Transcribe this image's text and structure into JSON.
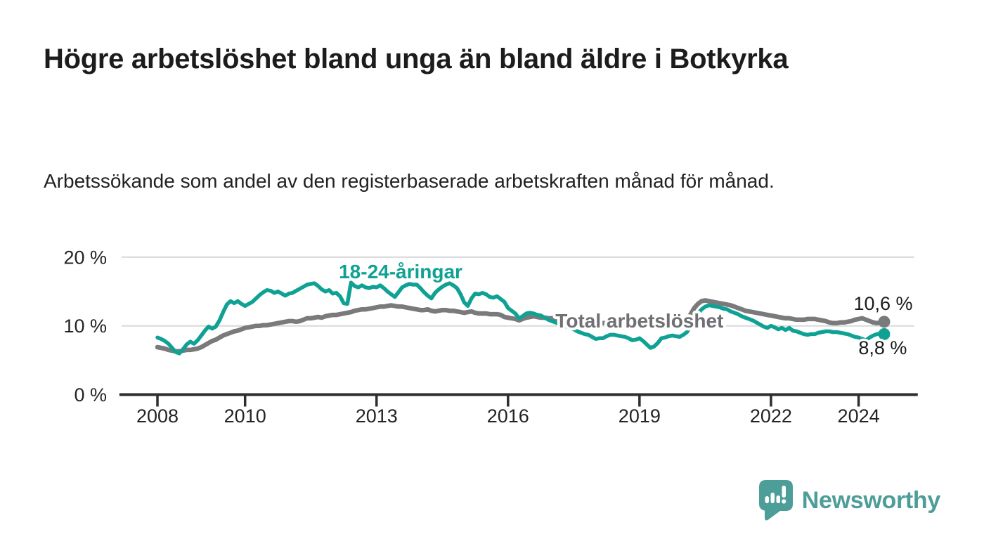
{
  "header": {
    "title": "Högre arbetslöshet bland unga än bland äldre i Botkyrka",
    "subtitle": "Arbetssökande som andel av den registerbaserade arbetskraften månad för månad."
  },
  "footer": {
    "brand": "Newsworthy"
  },
  "colors": {
    "youth_line": "#0fa294",
    "total_line": "#7a7a7c",
    "total_label_text": "#6f6f74",
    "value_label_text": "#1a1a1a",
    "axis": "#2e2e2e",
    "tick_text": "#232323",
    "grid": "#d9d9d9",
    "halo": "#ffffff",
    "logo": "#4d9d99"
  },
  "chart_data": {
    "type": "line",
    "title": "",
    "xlabel": "",
    "ylabel": "",
    "x_unit": "year (monthly data)",
    "y_unit": "%",
    "x_start_year": 2008,
    "points_per_year": 12,
    "xlim": [
      2007.1,
      2025.35
    ],
    "ylim": [
      0,
      21
    ],
    "grid": "horizontal",
    "legend_position": "inline-labels",
    "x_ticks": [
      "2008",
      "2010",
      "2013",
      "2016",
      "2019",
      "2022",
      "2024"
    ],
    "x_tick_years": [
      2008,
      2010,
      2013,
      2016,
      2019,
      2022,
      2024
    ],
    "y_ticks": [
      {
        "value": 0,
        "label": "0 %"
      },
      {
        "value": 10,
        "label": "10 %"
      },
      {
        "value": 20,
        "label": "20 %"
      }
    ],
    "series": [
      {
        "name": "Total arbetslöshet",
        "color_key": "total_line",
        "end_label": "10,6 %",
        "end_value": 10.6,
        "values": [
          6.9,
          6.8,
          6.7,
          6.5,
          6.4,
          6.3,
          6.3,
          6.4,
          6.5,
          6.5,
          6.6,
          6.7,
          6.9,
          7.2,
          7.5,
          7.8,
          8.0,
          8.3,
          8.6,
          8.8,
          9.0,
          9.2,
          9.3,
          9.5,
          9.7,
          9.8,
          9.9,
          10.0,
          10.0,
          10.1,
          10.1,
          10.2,
          10.3,
          10.4,
          10.5,
          10.6,
          10.7,
          10.7,
          10.6,
          10.7,
          10.9,
          11.1,
          11.1,
          11.2,
          11.3,
          11.2,
          11.4,
          11.5,
          11.6,
          11.6,
          11.7,
          11.8,
          11.9,
          12.0,
          12.2,
          12.3,
          12.4,
          12.4,
          12.5,
          12.6,
          12.7,
          12.8,
          12.8,
          12.9,
          13.0,
          12.9,
          12.8,
          12.8,
          12.7,
          12.6,
          12.5,
          12.4,
          12.3,
          12.3,
          12.4,
          12.2,
          12.1,
          12.2,
          12.3,
          12.3,
          12.2,
          12.2,
          12.1,
          12.0,
          11.9,
          12.0,
          12.1,
          11.9,
          11.8,
          11.8,
          11.8,
          11.7,
          11.7,
          11.7,
          11.6,
          11.3,
          11.2,
          11.1,
          11.0,
          10.8,
          11.0,
          11.2,
          11.3,
          11.4,
          11.3,
          11.2,
          11.2,
          11.1,
          11.1,
          11.1,
          11.0,
          11.0,
          10.9,
          10.9,
          10.8,
          10.8,
          10.7,
          10.7,
          10.6,
          10.6,
          10.5,
          10.5,
          10.4,
          10.4,
          10.4,
          10.3,
          10.3,
          10.2,
          10.2,
          10.1,
          10.1,
          10.0,
          10.0,
          9.9,
          9.9,
          9.9,
          9.9,
          10.0,
          10.0,
          10.1,
          10.1,
          10.2,
          10.2,
          10.3,
          10.5,
          10.9,
          11.7,
          12.6,
          13.2,
          13.6,
          13.7,
          13.6,
          13.5,
          13.4,
          13.3,
          13.2,
          13.1,
          13.0,
          12.8,
          12.6,
          12.4,
          12.2,
          12.1,
          12.0,
          11.9,
          11.8,
          11.7,
          11.6,
          11.5,
          11.4,
          11.3,
          11.2,
          11.1,
          11.1,
          11.0,
          10.9,
          10.9,
          10.9,
          11.0,
          11.0,
          11.0,
          10.9,
          10.8,
          10.7,
          10.5,
          10.4,
          10.4,
          10.5,
          10.5,
          10.6,
          10.7,
          10.9,
          11.0,
          11.1,
          10.9,
          10.7,
          10.5,
          10.4,
          10.5,
          10.6
        ]
      },
      {
        "name": "18-24-åringar",
        "color_key": "youth_line",
        "end_label": "8,8 %",
        "end_value": 8.8,
        "values": [
          8.3,
          8.1,
          7.8,
          7.4,
          6.8,
          6.2,
          6.0,
          6.6,
          7.3,
          7.7,
          7.4,
          7.9,
          8.6,
          9.3,
          9.9,
          9.6,
          9.9,
          10.8,
          12.0,
          13.1,
          13.6,
          13.3,
          13.6,
          13.2,
          12.9,
          13.2,
          13.5,
          14.0,
          14.5,
          14.9,
          15.2,
          15.1,
          14.8,
          15.0,
          14.7,
          14.4,
          14.7,
          14.8,
          15.1,
          15.4,
          15.7,
          16.0,
          16.1,
          16.2,
          15.8,
          15.3,
          15.0,
          15.2,
          14.7,
          14.8,
          14.3,
          13.3,
          13.2,
          16.3,
          15.8,
          15.6,
          15.9,
          15.6,
          15.5,
          15.7,
          15.6,
          15.9,
          15.5,
          15.0,
          14.6,
          14.2,
          14.9,
          15.6,
          15.9,
          16.1,
          16.0,
          16.0,
          15.5,
          14.9,
          14.4,
          14.0,
          14.8,
          15.3,
          15.7,
          16.0,
          16.2,
          15.9,
          15.5,
          14.6,
          13.4,
          12.9,
          14.0,
          14.7,
          14.6,
          14.8,
          14.6,
          14.2,
          14.1,
          14.3,
          13.9,
          13.5,
          12.6,
          12.2,
          11.8,
          11.1,
          11.4,
          11.8,
          11.9,
          11.8,
          11.6,
          11.5,
          11.2,
          10.9,
          10.7,
          10.5,
          10.3,
          10.1,
          9.9,
          9.7,
          9.5,
          9.2,
          9.0,
          8.8,
          8.7,
          8.4,
          8.1,
          8.2,
          8.2,
          8.5,
          8.7,
          8.7,
          8.6,
          8.5,
          8.4,
          8.2,
          7.9,
          8.0,
          8.2,
          7.8,
          7.3,
          6.8,
          7.0,
          7.5,
          8.2,
          8.3,
          8.5,
          8.6,
          8.5,
          8.4,
          8.7,
          9.1,
          10.0,
          11.0,
          11.8,
          12.4,
          12.8,
          13.0,
          12.9,
          12.8,
          12.7,
          12.5,
          12.4,
          12.1,
          11.9,
          11.7,
          11.4,
          11.2,
          11.0,
          10.8,
          10.5,
          10.2,
          9.9,
          9.7,
          10.0,
          9.8,
          9.5,
          9.7,
          9.4,
          9.7,
          9.3,
          9.2,
          9.0,
          8.8,
          8.7,
          8.8,
          8.8,
          9.0,
          9.1,
          9.2,
          9.2,
          9.1,
          9.1,
          9.0,
          8.9,
          8.8,
          8.6,
          8.4,
          8.3,
          8.1,
          7.9,
          8.3,
          8.6,
          8.8,
          8.9,
          8.8
        ]
      }
    ],
    "annotations": [
      {
        "text": "18-24-åringar",
        "anchor_x_year": 2013.55,
        "baseline_y_pct": 16.9,
        "style": "series-label-youth"
      },
      {
        "text": "Total arbetslöshet",
        "anchor_x_year": 2019.0,
        "baseline_y_pct": 9.75,
        "style": "series-label-total"
      },
      {
        "text": "10,6 %",
        "anchor_x_year": 2024.56,
        "baseline_y_pct": 12.3,
        "style": "end-value-total"
      },
      {
        "text": "8,8 %",
        "anchor_x_year": 2024.55,
        "baseline_y_pct": 5.9,
        "style": "end-value-youth"
      }
    ]
  }
}
